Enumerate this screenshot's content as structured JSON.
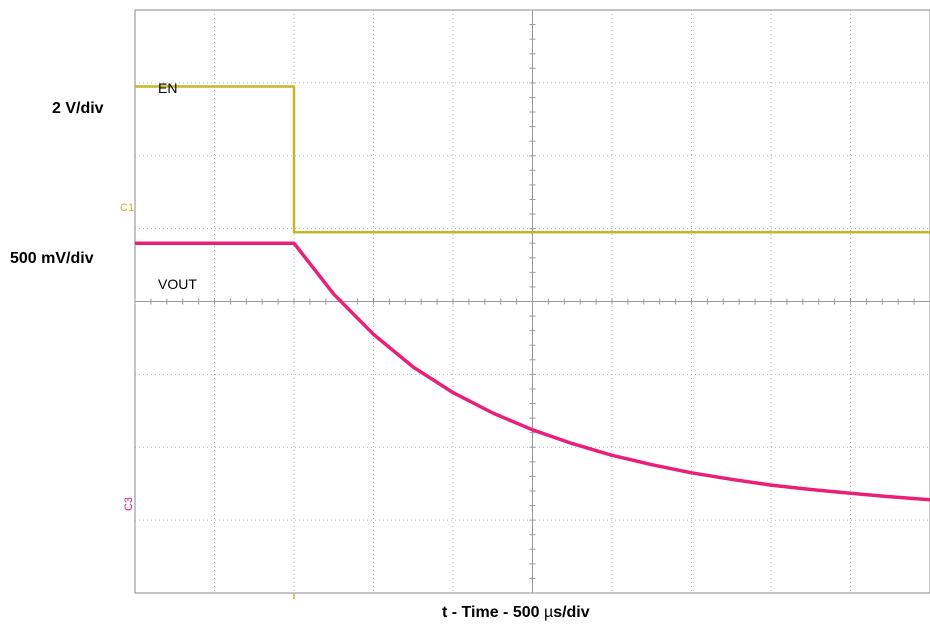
{
  "chart_data": {
    "type": "line",
    "title": "",
    "xlabel_parts": {
      "prefix": "t - Time - 500 ",
      "mu": "µ",
      "suffix": "s/div"
    },
    "grid": {
      "on": true,
      "x_divisions": 10,
      "y_divisions": 8
    },
    "x_unit": "div",
    "xlim": [
      0,
      10
    ],
    "colors": {
      "en": "#c8b428",
      "vout": "#e8207a",
      "grid": "#a0a0a0",
      "frame": "#888888"
    },
    "channels": [
      {
        "id": "EN",
        "label": "EN",
        "scale_label": "2 V/div",
        "marker": "C1",
        "marker_div": 4.95,
        "x": [
          0,
          2,
          2,
          10
        ],
        "y_div": [
          6.95,
          6.95,
          4.95,
          4.95
        ]
      },
      {
        "id": "VOUT",
        "label": "VOUT",
        "scale_label": "500 mV/div",
        "marker": "C3",
        "marker_div": 1.0,
        "x": [
          0,
          2,
          2.5,
          3,
          3.5,
          4,
          4.5,
          5,
          5.5,
          6,
          6.5,
          7,
          7.5,
          8,
          8.5,
          9,
          9.5,
          10
        ],
        "y_div": [
          4.8,
          4.8,
          4.1,
          3.55,
          3.1,
          2.75,
          2.47,
          2.24,
          2.05,
          1.89,
          1.76,
          1.65,
          1.56,
          1.48,
          1.42,
          1.37,
          1.32,
          1.28
        ]
      }
    ]
  }
}
